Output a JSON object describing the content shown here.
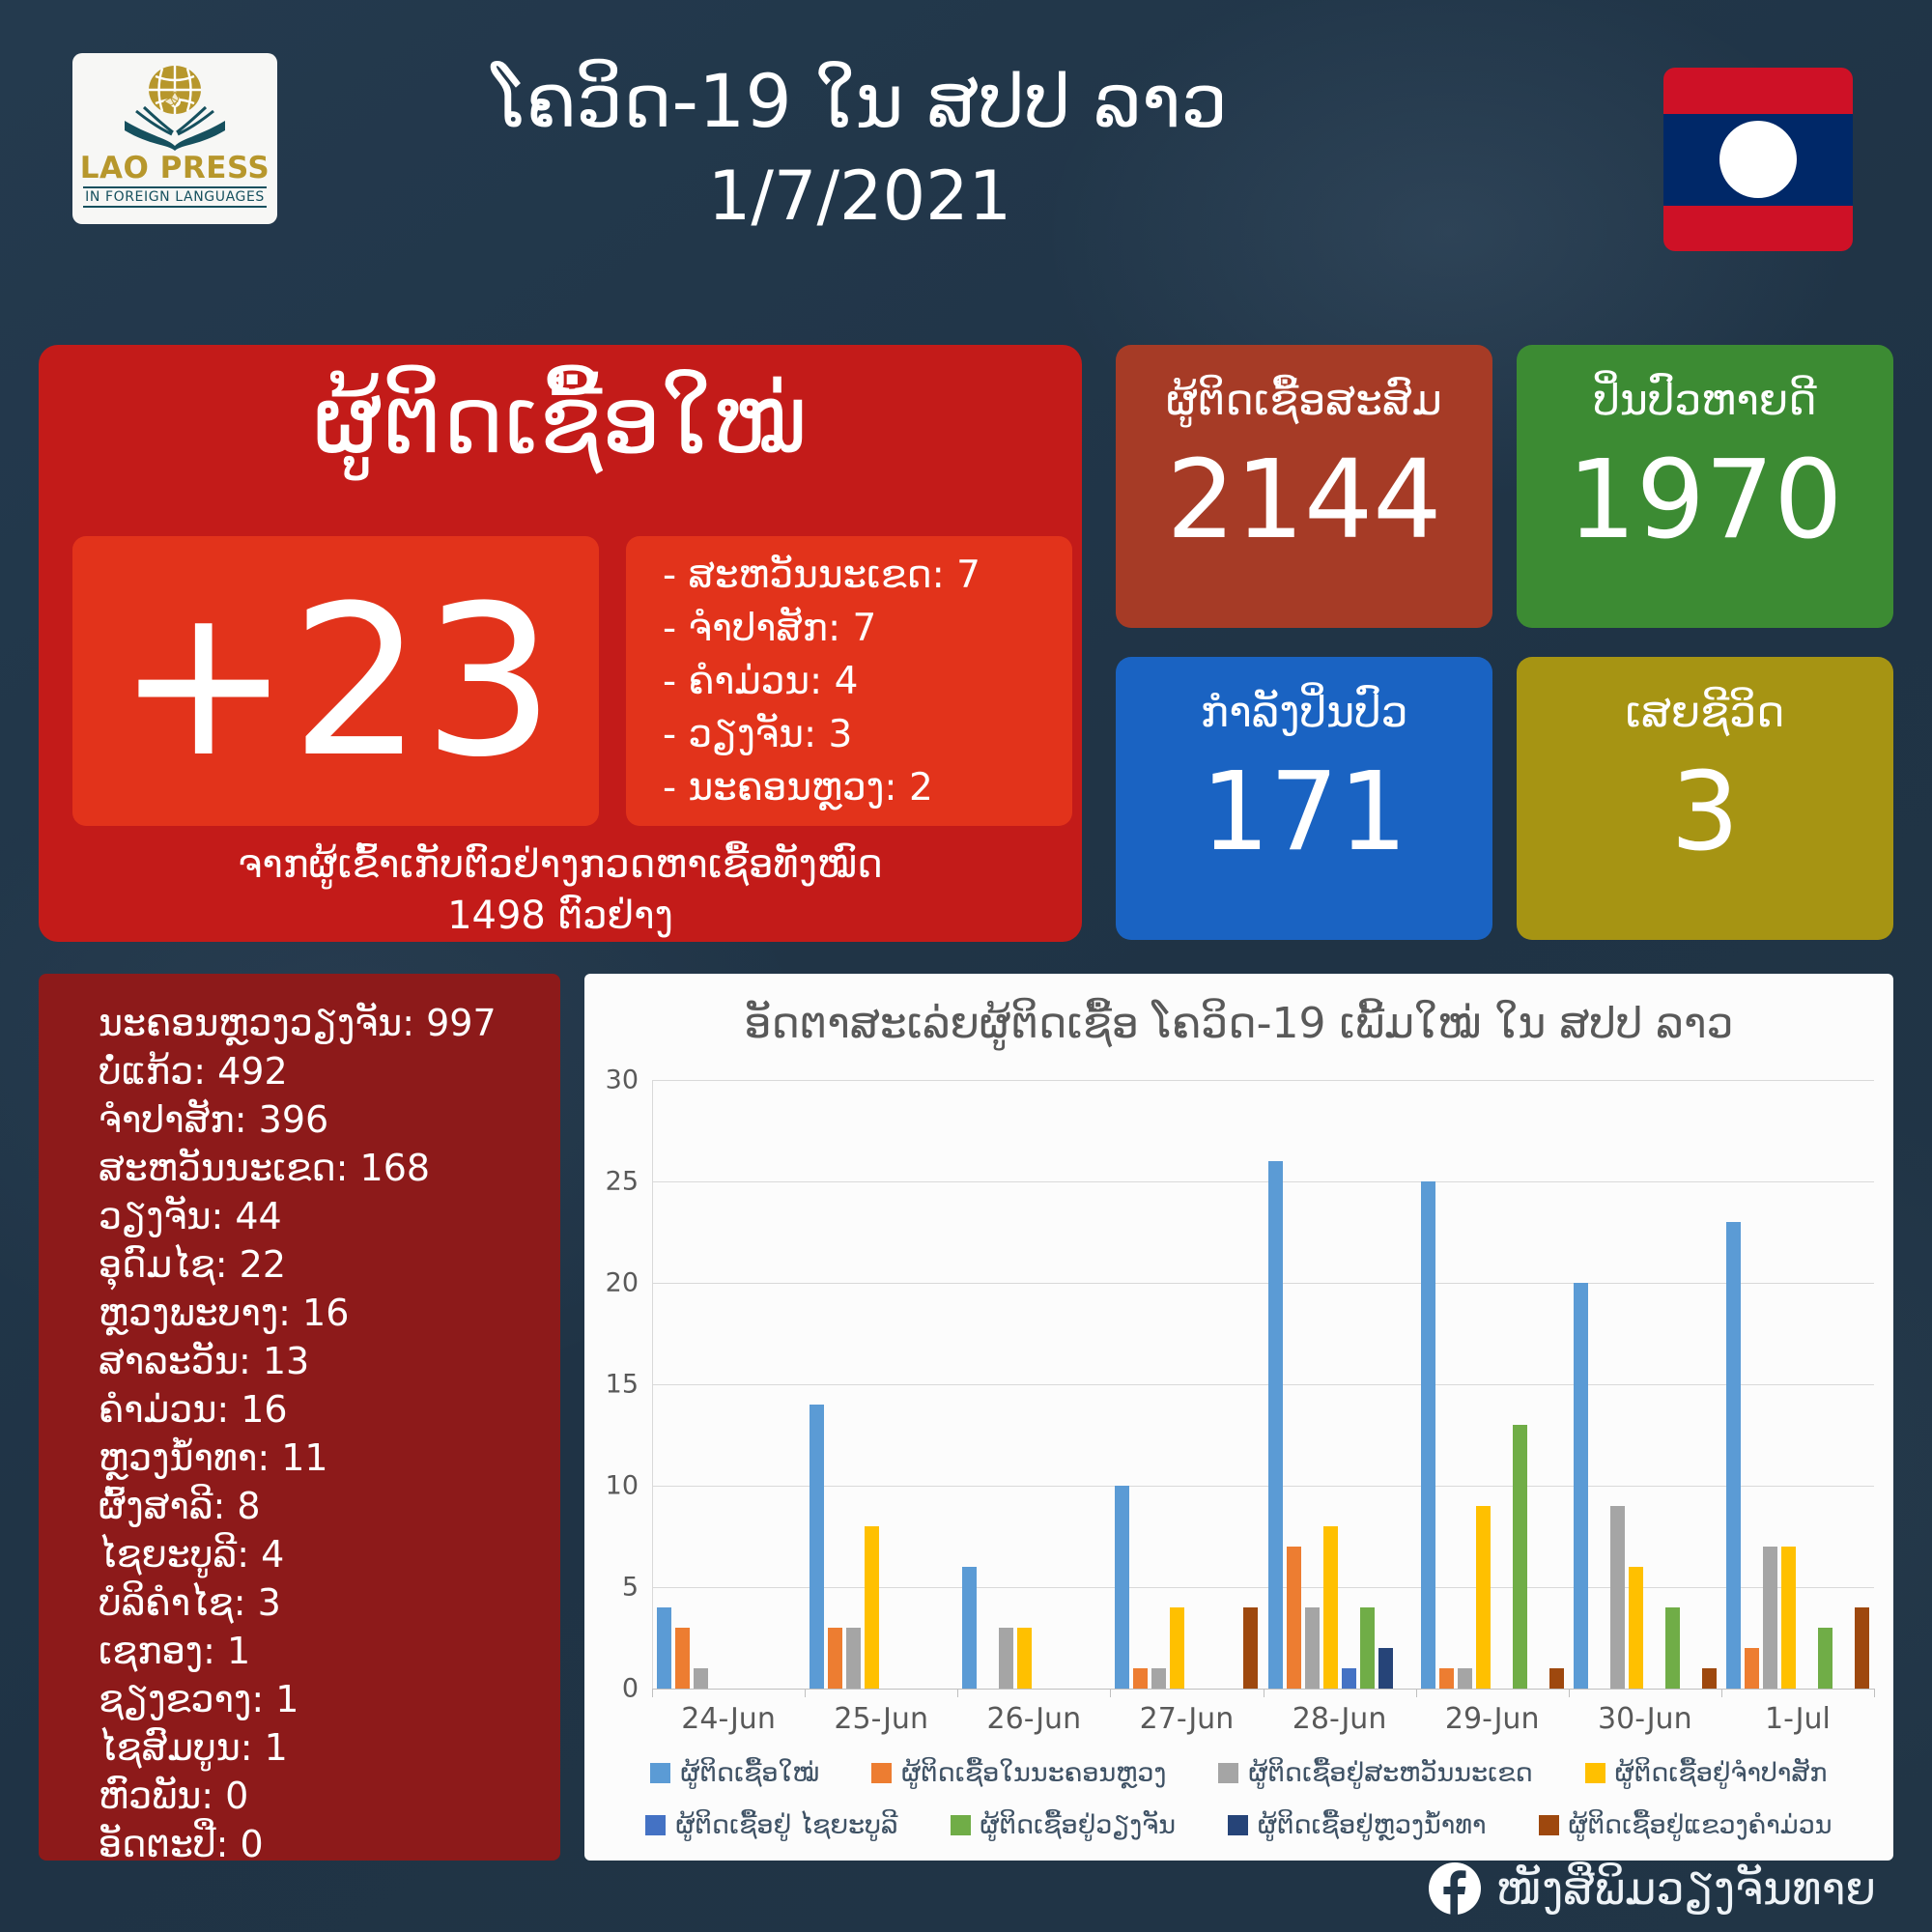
{
  "header": {
    "logo_line1": "LAO PRESS",
    "logo_line2": "IN FOREIGN LANGUAGES",
    "title": "ໂຄວິດ-19 ໃນ ສປປ ລາວ",
    "date": "1/7/2021"
  },
  "new_cases_panel": {
    "title": "ຜູ້ຕິດເຊື້ອໃໝ່",
    "count": "+23",
    "breakdown": [
      "- ສະຫວັນນະເຂດ: 7",
      "- ຈຳປາສັກ: 7",
      "- ຄຳມ່ວນ: 4",
      "- ວຽງຈັນ: 3",
      "- ນະຄອນຫຼວງ: 2"
    ],
    "caption_line1": "ຈາກຜູ້ເຂົ້າເກັບຕົວຢ່າງກວດຫາເຊື້ອທັງໝົດ",
    "caption_line2": "1498 ຕົວຢ່າງ"
  },
  "stat_cards": [
    {
      "label": "ຜູ້ຕິດເຊື້ອສະສົມ",
      "value": "2144",
      "color": "#a63b26"
    },
    {
      "label": "ປິ່ນປົວຫາຍດີ",
      "value": "1970",
      "color": "#3c8b33"
    },
    {
      "label": "ກຳລັງປິ່ນປົວ",
      "value": "171",
      "color": "#1a63c2"
    },
    {
      "label": "ເສຍຊີວິດ",
      "value": "3",
      "color": "#a69413"
    }
  ],
  "province_totals": [
    "ນະຄອນຫຼວງວຽງຈັນ: 997",
    "ບໍ່ແກ້ວ: 492",
    "ຈຳປາສັກ: 396",
    "ສະຫວັນນະເຂດ: 168",
    "ວຽງຈັນ: 44",
    "ອຸດົມໄຊ: 22",
    "ຫຼວງພະບາງ: 16",
    "ສາລະວັນ: 13",
    "ຄຳມ່ວນ: 16",
    "ຫຼວງນ້ຳທາ: 11",
    "ຜົ້ງສາລີ: 8",
    "ໄຊຍະບູລີ: 4",
    "ບໍລິຄຳໄຊ: 3",
    "ເຊກອງ: 1",
    "ຊຽງຂວາງ: 1",
    "ໄຊສົມບູນ: 1",
    "ຫົວພັນ: 0",
    "ອັດຕະປື: 0"
  ],
  "chart_data": {
    "type": "bar",
    "title": "ອັດຕາສະເລ່ຍຜູ້ຕິດເຊື້ອ ໂຄວິດ-19 ເພີ້ມໃໝ່ ໃນ ສປປ ລາວ",
    "categories": [
      "24-Jun",
      "25-Jun",
      "26-Jun",
      "27-Jun",
      "28-Jun",
      "29-Jun",
      "30-Jun",
      "1-Jul"
    ],
    "series": [
      {
        "name": "ຜູ້ຕິດເຊື້ອໃໝ່",
        "color": "#5b9bd5",
        "values": [
          4,
          14,
          6,
          10,
          26,
          25,
          20,
          23
        ]
      },
      {
        "name": "ຜູ້ຕິດເຊື້ອໃນນະຄອນຫຼວງ",
        "color": "#ed7d31",
        "values": [
          3,
          3,
          0,
          1,
          7,
          1,
          0,
          2
        ]
      },
      {
        "name": "ຜູ້ຕິດເຊື້ອຢູ່ສະຫວັນນະເຂດ",
        "color": "#a5a5a5",
        "values": [
          1,
          3,
          3,
          1,
          4,
          1,
          9,
          7
        ]
      },
      {
        "name": "ຜູ້ຕິດເຊື້ອຢູ່ຈຳປາສັກ",
        "color": "#ffc000",
        "values": [
          0,
          8,
          3,
          4,
          8,
          9,
          6,
          7
        ]
      },
      {
        "name": "ຜູ້ຕິດເຊື້ອຢູ່ ໄຊຍະບູລີ",
        "color": "#4472c4",
        "values": [
          0,
          0,
          0,
          0,
          1,
          0,
          0,
          0
        ]
      },
      {
        "name": "ຜູ້ຕິດເຊື້ອຢູ່ວຽງຈັນ",
        "color": "#70ad47",
        "values": [
          0,
          0,
          0,
          0,
          4,
          13,
          4,
          3
        ]
      },
      {
        "name": "ຜູ້ຕິດເຊື້ອຢູ່ຫຼວງນ້ຳທາ",
        "color": "#264478",
        "values": [
          0,
          0,
          0,
          0,
          2,
          0,
          0,
          0
        ]
      },
      {
        "name": "ຜູ້ຕິດເຊື້ອຢູ່ແຂວງຄຳມ່ວນ",
        "color": "#9e480e",
        "values": [
          0,
          0,
          0,
          4,
          0,
          1,
          1,
          4
        ]
      }
    ],
    "ylim": [
      0,
      30
    ],
    "yticks": [
      0,
      5,
      10,
      15,
      20,
      25,
      30
    ],
    "grid": true,
    "legend_position": "bottom",
    "legend_rows": [
      4,
      4
    ]
  },
  "footer": {
    "facebook_label": "ໜັງສືພິມວຽງຈັນທາຍ"
  }
}
